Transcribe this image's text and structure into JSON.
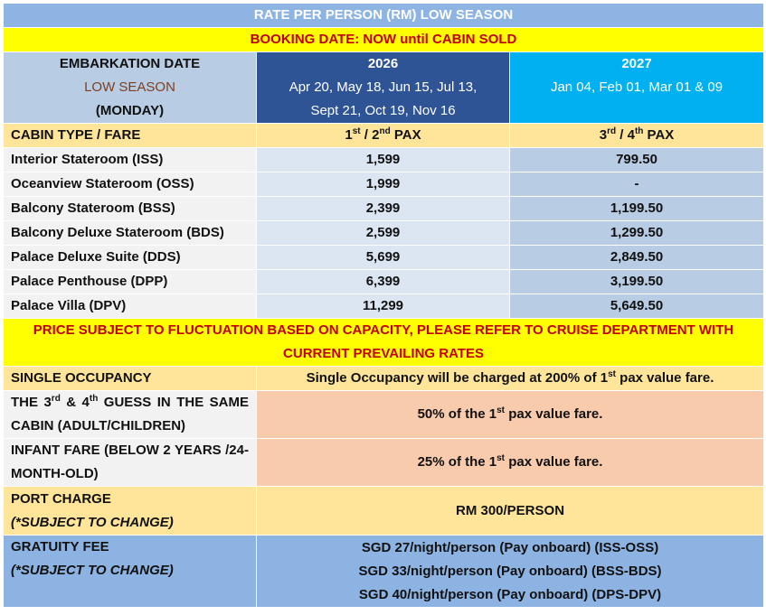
{
  "title": "RATE PER PERSON (RM) LOW SEASON",
  "booking": "BOOKING DATE: NOW until CABIN SOLD",
  "embarkation": {
    "line1": "EMBARKATION DATE",
    "line2": "LOW SEASON",
    "line3": "(MONDAY)"
  },
  "year2026": {
    "year": "2026",
    "dates1": "Apr 20, May 18, Jun 15, Jul 13,",
    "dates2": "Sept 21, Oct 19, Nov 16"
  },
  "year2027": {
    "year": "2027",
    "dates": "Jan 04, Feb 01, Mar 01 & 09"
  },
  "fare_header": {
    "cabin": "CABIN TYPE / FARE",
    "pax12_a": "1",
    "pax12_sup_a": "st",
    "pax12_b": " / 2",
    "pax12_sup_b": "nd",
    "pax12_c": " PAX",
    "pax34_a": "3",
    "pax34_sup_a": "rd",
    "pax34_b": " / 4",
    "pax34_sup_b": "th",
    "pax34_c": " PAX"
  },
  "rows": [
    {
      "cabin": "Interior Stateroom (ISS)",
      "pax12": "1,599",
      "pax34": "799.50"
    },
    {
      "cabin": "Oceanview Stateroom (OSS)",
      "pax12": "1,999",
      "pax34": "-"
    },
    {
      "cabin": "Balcony Stateroom (BSS)",
      "pax12": "2,399",
      "pax34": "1,199.50"
    },
    {
      "cabin": "Balcony Deluxe Stateroom (BDS)",
      "pax12": "2,599",
      "pax34": "1,299.50"
    },
    {
      "cabin": "Palace Deluxe Suite (DDS)",
      "pax12": "5,699",
      "pax34": "2,849.50"
    },
    {
      "cabin": "Palace Penthouse (DPP)",
      "pax12": "6,399",
      "pax34": "3,199.50"
    },
    {
      "cabin": "Palace Villa (DPV)",
      "pax12": "11,299",
      "pax34": "5,649.50"
    }
  ],
  "notice": "PRICE SUBJECT TO FLUCTUATION BASED ON CAPACITY, PLEASE REFER TO CRUISE DEPARTMENT WITH CURRENT PREVAILING RATES",
  "single": {
    "label": "SINGLE OCCUPANCY",
    "text_a": "Single Occupancy will be charged at 200% of 1",
    "sup": "st",
    "text_b": " pax value fare."
  },
  "guess": {
    "label_a": "THE 3",
    "label_sup_a": "rd",
    "label_b": " & 4",
    "label_sup_b": "th",
    "label_c": " GUESS IN THE SAME CABIN (ADULT/CHILDREN)",
    "text_a": "50% of the 1",
    "sup": "st",
    "text_b": " pax value fare."
  },
  "infant": {
    "label": "INFANT FARE (BELOW 2 YEARS /24-MONTH-OLD)",
    "text_a": "25% of the 1",
    "sup": "st",
    "text_b": " pax value fare."
  },
  "port": {
    "label": "PORT CHARGE",
    "sub": "(*SUBJECT TO CHANGE)",
    "value": "RM 300/PERSON"
  },
  "gratuity": {
    "label": "GRATUITY FEE",
    "sub": "(*SUBJECT TO CHANGE)",
    "lines": [
      "SGD 27/night/person (Pay onboard) (ISS-OSS)",
      "SGD 33/night/person (Pay onboard) (BSS-BDS)",
      "SGD 40/night/person (Pay onboard) (DPS-DPV)"
    ]
  },
  "colors": {
    "title_bg": "#8eb4e3",
    "booking_bg": "#ffff00",
    "booking_text": "#c00000",
    "year2026_bg": "#2f5496",
    "year2027_bg": "#00b0f0",
    "header_bg": "#fee599",
    "pax34_bg": "#b8cce4",
    "pax12_bg": "#dce6f2",
    "peach_bg": "#f8cbad",
    "gratuity_bg": "#8db3e2"
  }
}
